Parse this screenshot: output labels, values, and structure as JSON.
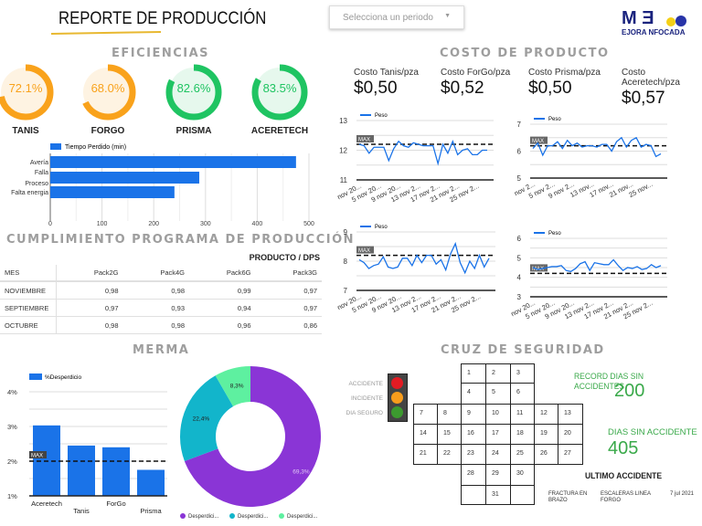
{
  "header": {
    "title": "REPORTE DE PRODUCCIÓN",
    "period_placeholder": "Selecciona un periodo",
    "logo_text": "ME EJORA NFOCADA"
  },
  "sections": {
    "eficiencias": "EFICIENCIAS",
    "costo": "COSTO DE PRODUCTO",
    "cumplimiento": "CUMPLIMIENTO PROGRAMA DE PRODUCCIÓN",
    "merma": "MERMA",
    "seguridad": "CRUZ DE SEGURIDAD"
  },
  "gauges": [
    {
      "label": "TANIS",
      "value": "72.1%",
      "fraction": 0.721,
      "color": "#f9a21b",
      "bg": "#fef3e2"
    },
    {
      "label": "FORGO",
      "value": "68.0%",
      "fraction": 0.68,
      "color": "#f9a21b",
      "bg": "#fef3e2"
    },
    {
      "label": "PRISMA",
      "value": "82.6%",
      "fraction": 0.826,
      "color": "#1fc462",
      "bg": "#e6f8ed"
    },
    {
      "label": "ACERETECH",
      "value": "83.5%",
      "fraction": 0.835,
      "color": "#1fc462",
      "bg": "#e6f8ed"
    }
  ],
  "costs": [
    {
      "label": "Costo Tanis/pza",
      "value": "$0,50"
    },
    {
      "label": "Costo ForGo/pza",
      "value": "$0,52"
    },
    {
      "label": "Costo Prisma/pza",
      "value": "$0,50"
    },
    {
      "label": "Costo Aceretech/pza",
      "value": "$0,57"
    }
  ],
  "chart_data": [
    {
      "type": "bar",
      "orientation": "horizontal",
      "legend": "Tiempo Perdido (min)",
      "categories": [
        "Avería",
        "Falla Proceso",
        "Falta energia"
      ],
      "category_lines": [
        [
          "Avería"
        ],
        [
          "Falla",
          "Proceso"
        ],
        [
          "Falta energia"
        ]
      ],
      "values": [
        475,
        288,
        240
      ],
      "xlim": [
        0,
        500
      ],
      "ticks": [
        "0",
        "100",
        "200",
        "300",
        "400",
        "500"
      ],
      "color": "#1a73e8"
    },
    {
      "type": "line",
      "legend": "Peso",
      "ylim": [
        11,
        13
      ],
      "ticks": [
        "11",
        "12",
        "13"
      ],
      "max": 12.2,
      "max_label": "MAX",
      "xlabels": [
        "nov 20...",
        "5 nov 20...",
        "9 nov 20...",
        "13 nov 2...",
        "17 nov 2...",
        "21 nov 2...",
        "25 nov 2..."
      ],
      "values": [
        12.2,
        12.15,
        11.9,
        12.1,
        12.1,
        12.1,
        11.65,
        12.05,
        12.3,
        12.15,
        12.1,
        12.25,
        12.2,
        12.15,
        12.15,
        12.15,
        11.55,
        12.2,
        11.9,
        12.3,
        11.85,
        12.0,
        12.05,
        11.85,
        11.85,
        12.0,
        12.0
      ]
    },
    {
      "type": "line",
      "legend": "Peso",
      "ylim": [
        5,
        7
      ],
      "ticks": [
        "5",
        "6",
        "7"
      ],
      "max": 6.2,
      "max_label": "MAX",
      "xlabels": [
        "nov 2...",
        "5 nov 2...",
        "9 nov 2...",
        "13 nov...",
        "17 nov...",
        "21 nov...",
        "25 nov..."
      ],
      "values": [
        6.1,
        6.3,
        5.85,
        6.2,
        6.2,
        6.35,
        6.1,
        6.4,
        6.2,
        6.3,
        6.15,
        6.2,
        6.2,
        6.15,
        6.25,
        6.25,
        6.0,
        6.35,
        6.5,
        6.15,
        6.4,
        6.5,
        6.15,
        6.25,
        6.2,
        5.8,
        5.9
      ]
    },
    {
      "type": "line",
      "legend": "Peso",
      "ylim": [
        7,
        9
      ],
      "ticks": [
        "7",
        "8",
        "9"
      ],
      "max": 8.2,
      "max_label": "MAX",
      "xlabels": [
        "nov 20...",
        "5 nov 20...",
        "9 nov 20...",
        "13 nov 2...",
        "17 nov 2...",
        "21 nov 2...",
        "25 nov 2..."
      ],
      "values": [
        8.05,
        7.95,
        7.75,
        7.85,
        7.9,
        8.15,
        7.8,
        7.75,
        7.8,
        8.1,
        8.1,
        7.85,
        8.2,
        7.95,
        8.2,
        8.2,
        7.9,
        8.05,
        7.7,
        8.25,
        8.6,
        7.95,
        7.6,
        8.0,
        7.75,
        8.2,
        7.8,
        8.1
      ]
    },
    {
      "type": "line",
      "legend": "Peso",
      "ylim": [
        3,
        6
      ],
      "ticks": [
        "3",
        "4",
        "5",
        "6"
      ],
      "max": 4.2,
      "max_label": "MAX",
      "xlabels": [
        "nov 20...",
        "5 nov 20...",
        "9 nov 20...",
        "13 nov 2...",
        "17 nov 2...",
        "21 nov 2...",
        "25 nov 2..."
      ],
      "values": [
        4.5,
        4.4,
        4.45,
        4.5,
        4.55,
        4.55,
        4.6,
        4.35,
        4.3,
        4.45,
        4.7,
        4.8,
        4.35,
        4.75,
        4.7,
        4.65,
        4.65,
        4.9,
        4.6,
        4.35,
        4.5,
        4.45,
        4.55,
        4.4,
        4.45,
        4.65,
        4.5,
        4.6
      ]
    },
    {
      "type": "bar",
      "legend": "%Desperdicio",
      "categories": [
        "Aceretech",
        "Tanis",
        "ForGo",
        "Prisma"
      ],
      "values": [
        3.03,
        2.45,
        2.4,
        1.75
      ],
      "ylim": [
        1,
        4
      ],
      "ticks": [
        "1%",
        "2%",
        "3%",
        "4%"
      ],
      "max": 2.0,
      "max_label": "MAX",
      "color": "#1a73e8"
    },
    {
      "type": "pie",
      "donut": true,
      "labels": [
        "Desperdici...",
        "Desperdici...",
        "Desperdici..."
      ],
      "values": [
        69.3,
        22.4,
        8.3
      ],
      "value_labels": [
        "69,3%",
        "22,4%",
        "8,3%"
      ],
      "colors": [
        "#8a35d6",
        "#12b5cb",
        "#5ef0a0"
      ],
      "legend": "bottom"
    }
  ],
  "table": {
    "group_header": "PRODUCTO / DPS",
    "columns": [
      "MES",
      "Pack2G",
      "Pack4G",
      "Pack6G",
      "Pack3G"
    ],
    "rows": [
      [
        "NOVIEMBRE",
        "0,98",
        "0,98",
        "0,99",
        "0,97"
      ],
      [
        "SEPTIEMBRE",
        "0,97",
        "0,93",
        "0,94",
        "0,97"
      ],
      [
        "OCTUBRE",
        "0,98",
        "0,98",
        "0,96",
        "0,86"
      ]
    ]
  },
  "safety": {
    "legend": [
      {
        "label": "ACCIDENTE",
        "color": "#e31b23"
      },
      {
        "label": "INCIDENTE",
        "color": "#f99d1c"
      },
      {
        "label": "DIA SEGURO",
        "color": "#3c9a2f"
      }
    ],
    "days": [
      [
        "",
        "",
        "1",
        "2",
        "3",
        "",
        ""
      ],
      [
        "",
        "",
        "4",
        "5",
        "6",
        "",
        ""
      ],
      [
        "7",
        "8",
        "9",
        "10",
        "11",
        "12",
        "13"
      ],
      [
        "14",
        "15",
        "16",
        "17",
        "18",
        "19",
        "20"
      ],
      [
        "21",
        "22",
        "23",
        "24",
        "25",
        "26",
        "27"
      ],
      [
        "",
        "",
        "28",
        "29",
        "30",
        "",
        ""
      ],
      [
        "",
        "",
        "",
        "31",
        "",
        "",
        ""
      ]
    ],
    "record_label": "RECORD DIAS SIN ACCIDENTES",
    "record_value": "200",
    "days_label": "DIAS SIN ACCIDENTE",
    "days_value": "405",
    "last_label": "ULTIMO ACCIDENTE",
    "last_type": "FRACTURA EN BRAZO",
    "last_place": "ESCALERAS LINEA FORGO",
    "last_date": "7 jul 2021"
  }
}
